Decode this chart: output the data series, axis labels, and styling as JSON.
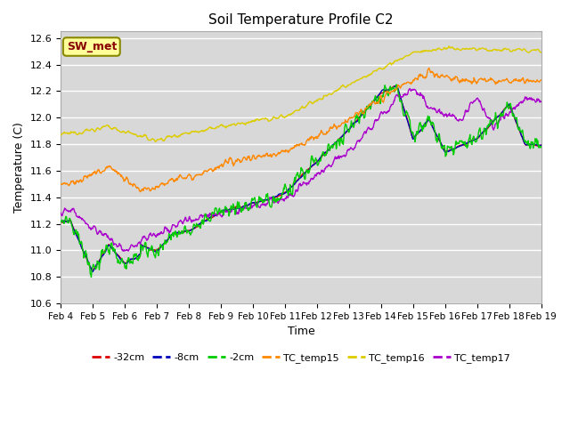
{
  "title": "Soil Temperature Profile C2",
  "xlabel": "Time",
  "ylabel": "Temperature (C)",
  "ylim": [
    10.6,
    12.65
  ],
  "yticks": [
    10.6,
    10.8,
    11.0,
    11.2,
    11.4,
    11.6,
    11.8,
    12.0,
    12.2,
    12.4,
    12.6
  ],
  "bg_color": "#d8d8d8",
  "fig_color": "#ffffff",
  "annotation_text": "SW_met",
  "annotation_color": "#880000",
  "annotation_bg": "#ffff99",
  "annotation_border": "#888800",
  "series": {
    "neg32cm": {
      "color": "#dd0000",
      "label": "-32cm",
      "lw": 1.0
    },
    "neg8cm": {
      "color": "#0000bb",
      "label": "-8cm",
      "lw": 1.0
    },
    "neg2cm": {
      "color": "#00cc00",
      "label": "-2cm",
      "lw": 1.0
    },
    "TC_temp15": {
      "color": "#ff8800",
      "label": "TC_temp15",
      "lw": 1.0
    },
    "TC_temp16": {
      "color": "#ddcc00",
      "label": "TC_temp16",
      "lw": 1.0
    },
    "TC_temp17": {
      "color": "#aa00cc",
      "label": "TC_temp17",
      "lw": 1.0
    }
  },
  "xtick_labels": [
    "Feb 4",
    "Feb 5",
    "Feb 6",
    "Feb 7",
    "Feb 8",
    "Feb 9",
    "Feb 10",
    "Feb 11",
    "Feb 12",
    "Feb 13",
    "Feb 14",
    "Feb 15",
    "Feb 16",
    "Feb 17",
    "Feb 18",
    "Feb 19"
  ],
  "n_points": 960,
  "date_start": 4,
  "date_end": 19
}
